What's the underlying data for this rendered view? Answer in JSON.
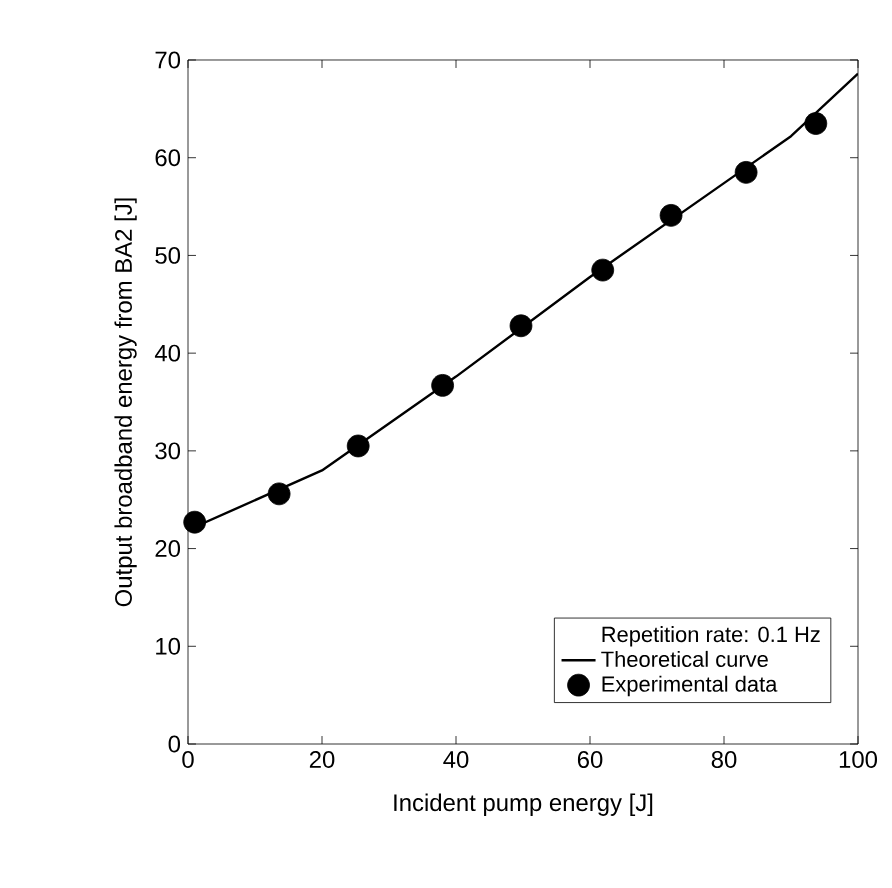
{
  "chart_data": {
    "type": "scatter",
    "xlabel": "Incident pump energy [J]",
    "ylabel": "Output broadband energy from BA2 [J]",
    "legend_title": "Repetition rate: 0.1 Hz",
    "series": [
      {
        "name": "Theoretical curve",
        "type": "line",
        "color": "#000000",
        "marker": "none",
        "line_style": "solid",
        "x": [
          0,
          20,
          40,
          60,
          80,
          90,
          100
        ],
        "values": [
          21.9,
          28.0,
          37.6,
          47.8,
          57.4,
          62.2,
          68.6
        ]
      },
      {
        "name": "Experimental data",
        "color": "#000000",
        "marker": "circle",
        "x": [
          1.0,
          13.6,
          25.4,
          38.0,
          49.7,
          61.9,
          72.1,
          83.3,
          93.7
        ],
        "values": [
          22.7,
          25.6,
          30.5,
          36.7,
          42.8,
          48.5,
          54.1,
          58.5,
          63.5
        ]
      }
    ],
    "xlim": [
      0,
      100
    ],
    "xticks": [
      0,
      20,
      40,
      60,
      80,
      100
    ],
    "ylim": [
      0,
      70
    ],
    "yticks": [
      0,
      10,
      20,
      30,
      40,
      50,
      60,
      70
    ],
    "grid": false,
    "legend": "bottom right"
  }
}
